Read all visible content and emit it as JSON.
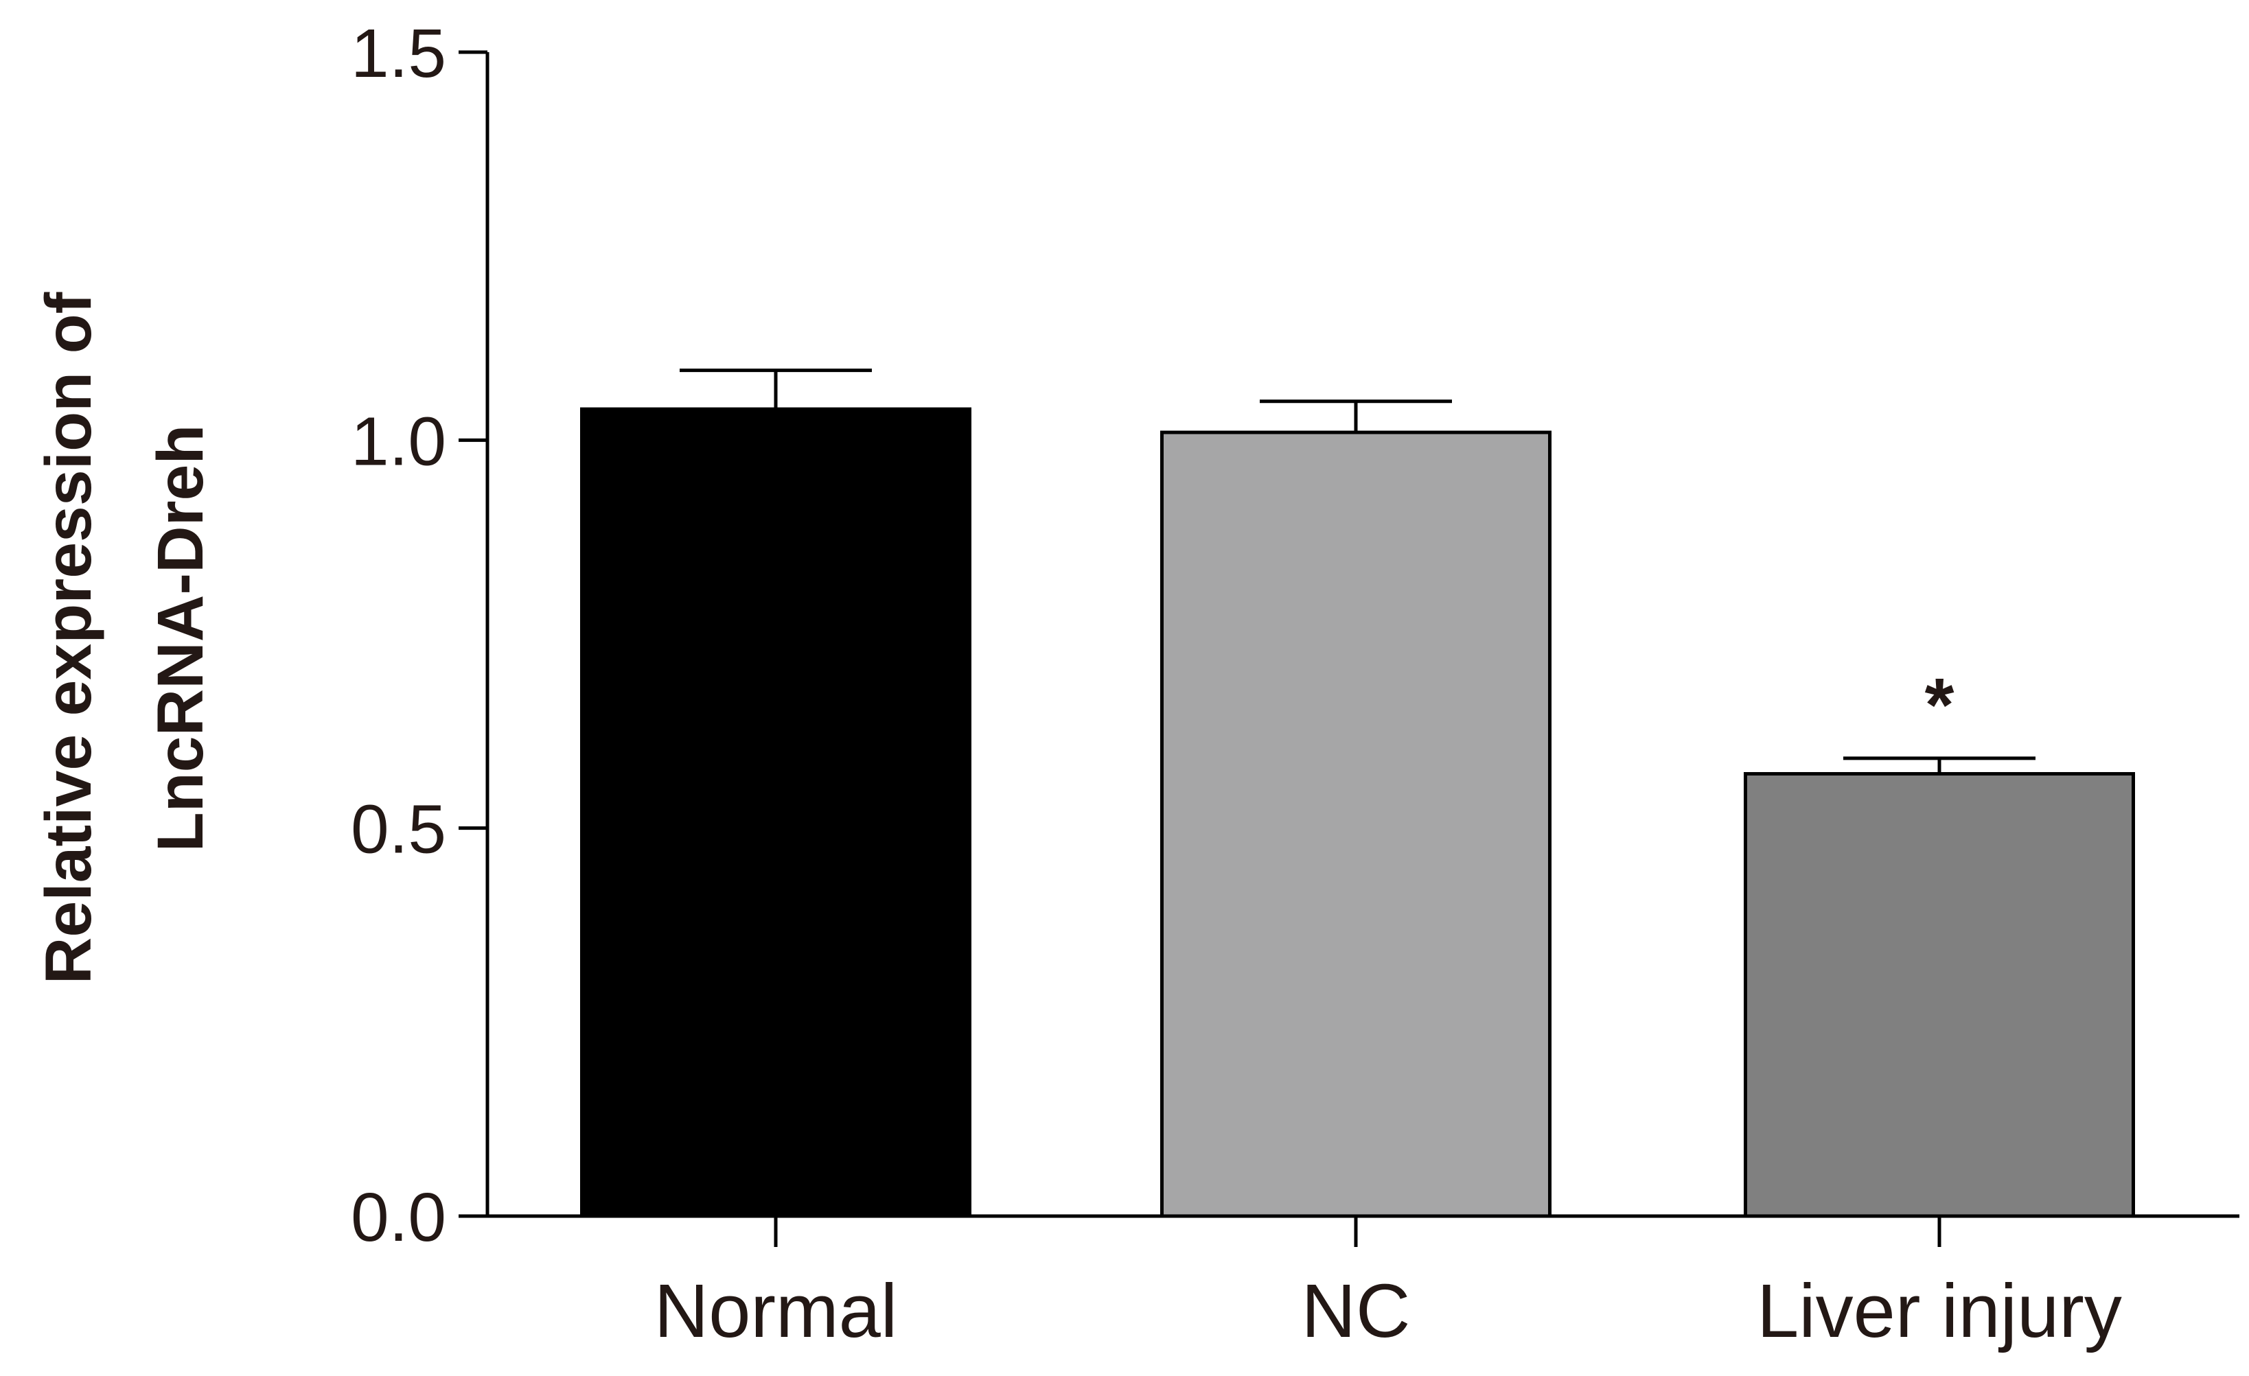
{
  "chart_data": {
    "type": "bar",
    "title": "",
    "xlabel": "",
    "ylabel_lines": [
      "Relative expression of",
      "LncRNA-Dreh"
    ],
    "ylim": [
      0,
      1.5
    ],
    "yticks": [
      "0.0",
      "0.5",
      "1.0",
      "1.5"
    ],
    "ytick_values": [
      0,
      0.5,
      1.0,
      1.5
    ],
    "categories": [
      "Normal",
      "NC",
      "Liver injury"
    ],
    "values": [
      1.04,
      1.01,
      0.57
    ],
    "errors": [
      0.05,
      0.04,
      0.02
    ],
    "colors": [
      "#000000",
      "#a6a6a7",
      "#808080"
    ],
    "significance": [
      "",
      "",
      "*"
    ],
    "grid": false
  }
}
